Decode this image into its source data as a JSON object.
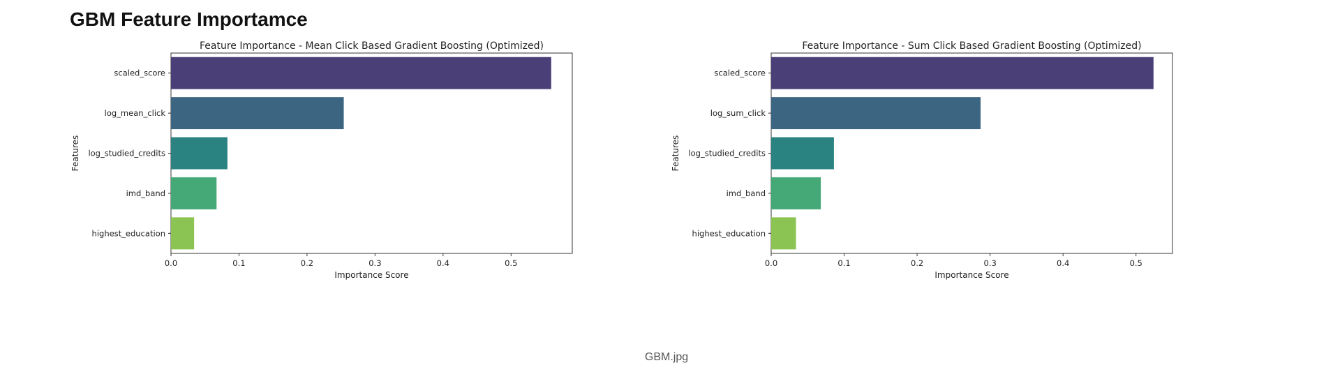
{
  "page": {
    "heading": "GBM Feature Importamce",
    "caption": "GBM.jpg"
  },
  "chart_data": [
    {
      "type": "bar",
      "orientation": "horizontal",
      "title": "Feature Importance - Mean Click Based Gradient Boosting (Optimized)",
      "xlabel": "Importance Score",
      "ylabel": "Features",
      "categories": [
        "scaled_score",
        "log_mean_click",
        "log_studied_credits",
        "imd_band",
        "highest_education"
      ],
      "values": [
        0.559,
        0.254,
        0.083,
        0.067,
        0.034
      ],
      "colors": [
        "#4b3f78",
        "#3c6582",
        "#2a8381",
        "#44a877",
        "#8cc453"
      ],
      "xlim": [
        0,
        0.59
      ],
      "xticks": [
        0.0,
        0.1,
        0.2,
        0.3,
        0.4,
        0.5
      ],
      "xtick_labels": [
        "0.0",
        "0.1",
        "0.2",
        "0.3",
        "0.4",
        "0.5"
      ],
      "grid": false,
      "legend": "none"
    },
    {
      "type": "bar",
      "orientation": "horizontal",
      "title": "Feature Importance - Sum Click Based Gradient Boosting (Optimized)",
      "xlabel": "Importance Score",
      "ylabel": "Features",
      "categories": [
        "scaled_score",
        "log_sum_click",
        "log_studied_credits",
        "imd_band",
        "highest_education"
      ],
      "values": [
        0.524,
        0.287,
        0.086,
        0.068,
        0.034
      ],
      "colors": [
        "#4b3f78",
        "#3c6582",
        "#2a8381",
        "#44a877",
        "#8cc453"
      ],
      "xlim": [
        0,
        0.55
      ],
      "xticks": [
        0.0,
        0.1,
        0.2,
        0.3,
        0.4,
        0.5
      ],
      "xtick_labels": [
        "0.0",
        "0.1",
        "0.2",
        "0.3",
        "0.4",
        "0.5"
      ],
      "grid": false,
      "legend": "none"
    }
  ]
}
